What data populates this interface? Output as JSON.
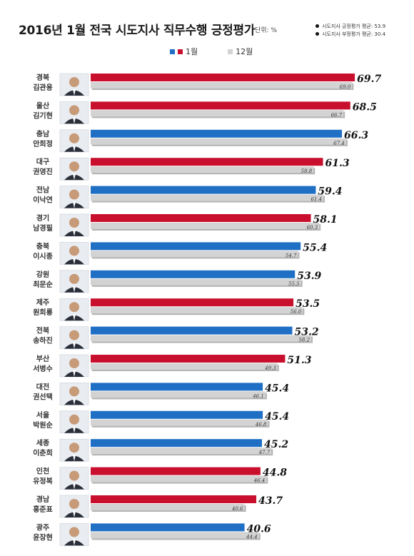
{
  "title": "2016년 1월 전국 시도지사 직무수행 긍정평가",
  "unit": "단위: %",
  "notes": [
    "시도지사 긍정평가 평균: 53.9",
    "시도지사 부정평가 평균: 30.4"
  ],
  "colors": {
    "red": "#c8102e",
    "blue": "#1f6fc5",
    "gray": "#d3d3d3",
    "gray_dark": "#b4b4b4"
  },
  "chart_data": {
    "type": "bar",
    "orientation": "horizontal",
    "legend_position": "top",
    "series": [
      {
        "name": "1월",
        "values": [
          69.7,
          68.5,
          66.3,
          61.3,
          59.4,
          58.1,
          55.4,
          53.9,
          53.5,
          53.2,
          51.3,
          45.4,
          45.4,
          45.2,
          44.8,
          43.7,
          40.6
        ]
      },
      {
        "name": "12월",
        "values": [
          69.0,
          66.7,
          67.4,
          58.8,
          61.4,
          60.3,
          54.7,
          55.5,
          56.0,
          58.2,
          49.3,
          46.1,
          46.8,
          47.7,
          46.4,
          40.6,
          44.4
        ]
      }
    ],
    "jan_colors": [
      "red",
      "red",
      "blue",
      "red",
      "blue",
      "red",
      "blue",
      "blue",
      "red",
      "blue",
      "red",
      "blue",
      "blue",
      "blue",
      "red",
      "red",
      "blue"
    ],
    "categories": [
      {
        "region": "경북",
        "name": "김관용"
      },
      {
        "region": "울산",
        "name": "김기현"
      },
      {
        "region": "충남",
        "name": "안희정"
      },
      {
        "region": "대구",
        "name": "권영진"
      },
      {
        "region": "전남",
        "name": "이낙연"
      },
      {
        "region": "경기",
        "name": "남경필"
      },
      {
        "region": "충북",
        "name": "이시종"
      },
      {
        "region": "강원",
        "name": "최문순"
      },
      {
        "region": "제주",
        "name": "원희룡"
      },
      {
        "region": "전북",
        "name": "송하진"
      },
      {
        "region": "부산",
        "name": "서병수"
      },
      {
        "region": "대전",
        "name": "권선택"
      },
      {
        "region": "서울",
        "name": "박원순"
      },
      {
        "region": "세종",
        "name": "이춘희"
      },
      {
        "region": "인천",
        "name": "유정복"
      },
      {
        "region": "경남",
        "name": "홍준표"
      },
      {
        "region": "광주",
        "name": "윤장현"
      }
    ]
  }
}
